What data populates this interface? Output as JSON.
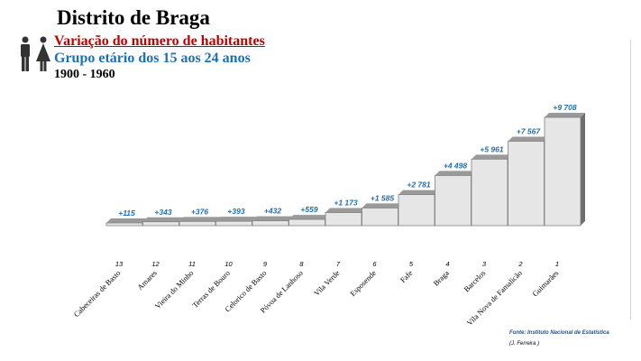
{
  "header": {
    "title": "Distrito de Braga",
    "subtitle": "Variação do número de habitantes",
    "group": "Grupo etário dos 15 aos 24 anos",
    "period": "1900 - 1960"
  },
  "footer": {
    "source": "Fonte: Instituto Nacional de Estatística",
    "author": "(J. Ferreira )"
  },
  "colors": {
    "bar_face": "#e6e6e6",
    "bar_top": "#9a9a9a",
    "bar_side": "#6e6e6e",
    "value_label": "#1f6fb2",
    "subtitle": "#c00000",
    "group": "#1f6fb2"
  },
  "icons": [
    "man-icon",
    "woman-icon"
  ],
  "chart_data": {
    "type": "bar",
    "categories": [
      "Cabeceiras de Basto",
      "Amares",
      "Vieira do Minho",
      "Terras de Bouro",
      "Celorico de Basto",
      "Póvoa de Lanhoso",
      "Vila Verde",
      "Esposende",
      "Fafe",
      "Braga",
      "Barcelos",
      "Vila Nova de Famalicão",
      "Guimarães"
    ],
    "ranks": [
      "13",
      "12",
      "11",
      "10",
      "9",
      "8",
      "7",
      "6",
      "5",
      "4",
      "3",
      "2",
      "1"
    ],
    "values": [
      115,
      343,
      376,
      393,
      432,
      559,
      1173,
      1585,
      2781,
      4498,
      5961,
      7567,
      9708
    ],
    "value_labels": [
      "+115",
      "+343",
      "+376",
      "+393",
      "+432",
      "+559",
      "+1 173",
      "+1 585",
      "+2 781",
      "+4 498",
      "+5 961",
      "+7 567",
      "+9 708"
    ],
    "ylim": [
      0,
      9708
    ],
    "grid": false,
    "legend": "none"
  }
}
